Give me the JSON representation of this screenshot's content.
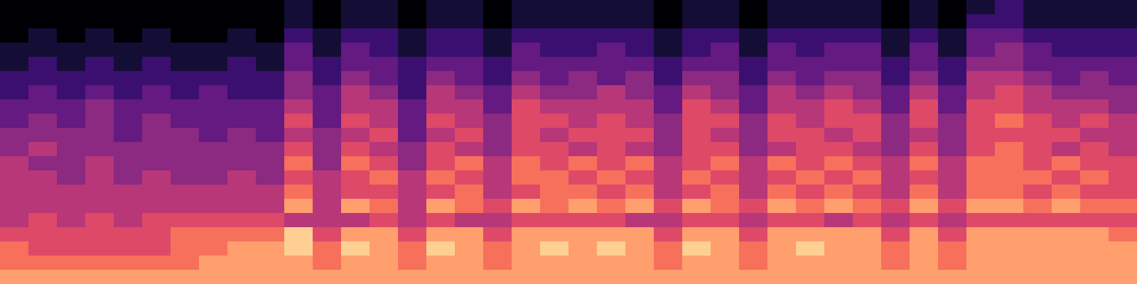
{
  "chart_data": {
    "type": "heatmap",
    "color": "magma",
    "tick_labels": false,
    "zlim": [
      0,
      10
    ],
    "cells": [
      [
        0,
        0,
        0,
        0,
        0,
        0,
        0,
        0,
        0,
        0,
        1,
        0,
        1,
        1,
        0,
        1,
        1,
        0,
        1,
        1,
        1,
        1,
        1,
        0,
        1,
        1,
        0,
        1,
        1,
        1,
        1,
        0,
        1,
        0,
        1,
        2,
        1,
        1,
        1,
        1
      ],
      [
        0,
        0,
        0,
        0,
        0,
        0,
        0,
        0,
        0,
        0,
        1,
        0,
        1,
        1,
        0,
        1,
        1,
        0,
        1,
        1,
        1,
        1,
        1,
        0,
        1,
        1,
        0,
        1,
        1,
        1,
        1,
        0,
        1,
        0,
        2,
        2,
        1,
        1,
        1,
        1
      ],
      [
        0,
        1,
        0,
        1,
        0,
        1,
        0,
        0,
        1,
        0,
        2,
        1,
        2,
        2,
        1,
        2,
        2,
        1,
        2,
        2,
        2,
        2,
        2,
        1,
        2,
        2,
        1,
        2,
        2,
        2,
        2,
        1,
        2,
        1,
        3,
        3,
        2,
        2,
        2,
        2
      ],
      [
        1,
        1,
        1,
        1,
        1,
        1,
        1,
        1,
        1,
        1,
        3,
        1,
        3,
        2,
        1,
        2,
        2,
        1,
        3,
        2,
        2,
        3,
        2,
        1,
        2,
        3,
        1,
        3,
        2,
        3,
        3,
        1,
        3,
        1,
        3,
        4,
        3,
        2,
        2,
        2
      ],
      [
        1,
        2,
        1,
        2,
        1,
        2,
        1,
        1,
        2,
        1,
        3,
        2,
        3,
        3,
        2,
        3,
        3,
        2,
        3,
        3,
        3,
        3,
        3,
        2,
        3,
        3,
        2,
        3,
        3,
        3,
        3,
        2,
        3,
        2,
        4,
        4,
        3,
        3,
        3,
        3
      ],
      [
        2,
        2,
        2,
        2,
        2,
        2,
        2,
        2,
        2,
        2,
        4,
        2,
        4,
        3,
        2,
        4,
        3,
        2,
        4,
        3,
        4,
        3,
        4,
        2,
        4,
        4,
        2,
        4,
        3,
        4,
        4,
        2,
        4,
        2,
        5,
        5,
        4,
        3,
        4,
        3
      ],
      [
        2,
        3,
        2,
        3,
        2,
        3,
        2,
        3,
        2,
        2,
        4,
        3,
        5,
        4,
        2,
        5,
        4,
        3,
        5,
        4,
        4,
        5,
        4,
        3,
        5,
        4,
        3,
        5,
        4,
        5,
        4,
        3,
        5,
        3,
        5,
        6,
        5,
        4,
        4,
        4
      ],
      [
        3,
        3,
        3,
        4,
        3,
        3,
        3,
        3,
        3,
        3,
        5,
        3,
        5,
        5,
        3,
        5,
        5,
        3,
        6,
        5,
        5,
        5,
        5,
        3,
        6,
        5,
        3,
        5,
        5,
        6,
        5,
        3,
        6,
        3,
        6,
        6,
        5,
        5,
        5,
        4
      ],
      [
        3,
        4,
        3,
        4,
        3,
        4,
        3,
        3,
        3,
        3,
        6,
        3,
        6,
        5,
        3,
        6,
        5,
        4,
        6,
        6,
        5,
        6,
        5,
        4,
        6,
        6,
        4,
        6,
        5,
        6,
        6,
        4,
        6,
        4,
        6,
        7,
        6,
        5,
        6,
        5
      ],
      [
        4,
        4,
        4,
        4,
        3,
        4,
        4,
        3,
        4,
        3,
        5,
        4,
        5,
        6,
        3,
        5,
        6,
        4,
        6,
        5,
        6,
        6,
        6,
        4,
        6,
        5,
        4,
        6,
        6,
        5,
        6,
        4,
        5,
        4,
        6,
        6,
        6,
        6,
        5,
        5
      ],
      [
        4,
        5,
        4,
        4,
        4,
        4,
        4,
        4,
        4,
        4,
        6,
        4,
        6,
        5,
        4,
        6,
        5,
        4,
        6,
        6,
        5,
        6,
        5,
        4,
        6,
        6,
        4,
        5,
        6,
        6,
        5,
        4,
        6,
        4,
        6,
        7,
        6,
        5,
        6,
        5
      ],
      [
        5,
        4,
        4,
        5,
        4,
        4,
        4,
        4,
        4,
        4,
        7,
        4,
        7,
        6,
        4,
        6,
        7,
        5,
        7,
        6,
        7,
        6,
        7,
        5,
        6,
        7,
        5,
        7,
        6,
        7,
        6,
        5,
        7,
        5,
        7,
        7,
        6,
        7,
        6,
        6
      ],
      [
        5,
        5,
        4,
        5,
        4,
        5,
        4,
        4,
        5,
        4,
        6,
        5,
        6,
        7,
        5,
        7,
        6,
        5,
        7,
        7,
        6,
        7,
        6,
        5,
        7,
        6,
        5,
        6,
        7,
        6,
        7,
        5,
        6,
        5,
        7,
        7,
        7,
        6,
        7,
        6
      ],
      [
        5,
        5,
        5,
        5,
        5,
        5,
        5,
        5,
        5,
        5,
        7,
        5,
        6,
        6,
        5,
        6,
        7,
        5,
        6,
        7,
        7,
        6,
        7,
        5,
        6,
        7,
        5,
        7,
        6,
        7,
        6,
        5,
        7,
        5,
        7,
        7,
        6,
        7,
        6,
        6
      ],
      [
        5,
        5,
        5,
        5,
        5,
        5,
        5,
        5,
        5,
        5,
        8,
        5,
        8,
        7,
        5,
        8,
        7,
        6,
        8,
        7,
        8,
        7,
        8,
        6,
        8,
        7,
        6,
        8,
        7,
        8,
        7,
        6,
        8,
        6,
        8,
        8,
        7,
        8,
        7,
        7
      ],
      [
        5,
        6,
        5,
        6,
        5,
        6,
        6,
        6,
        6,
        6,
        5,
        5,
        5,
        6,
        5,
        6,
        5,
        5,
        6,
        6,
        6,
        6,
        5,
        5,
        6,
        6,
        5,
        6,
        6,
        5,
        6,
        5,
        6,
        5,
        6,
        6,
        6,
        6,
        6,
        6
      ],
      [
        6,
        6,
        6,
        6,
        6,
        6,
        7,
        7,
        7,
        7,
        9,
        6,
        8,
        8,
        6,
        8,
        8,
        6,
        8,
        8,
        8,
        8,
        8,
        6,
        8,
        8,
        6,
        8,
        8,
        8,
        8,
        6,
        8,
        6,
        8,
        8,
        8,
        8,
        8,
        7
      ],
      [
        7,
        6,
        6,
        6,
        6,
        6,
        7,
        7,
        8,
        8,
        9,
        7,
        9,
        8,
        7,
        9,
        8,
        7,
        8,
        9,
        8,
        9,
        8,
        7,
        9,
        8,
        7,
        8,
        9,
        8,
        8,
        7,
        8,
        7,
        8,
        8,
        8,
        8,
        8,
        8
      ],
      [
        7,
        7,
        7,
        7,
        7,
        7,
        7,
        8,
        8,
        8,
        8,
        7,
        8,
        8,
        7,
        8,
        8,
        7,
        8,
        8,
        8,
        8,
        8,
        7,
        8,
        8,
        7,
        8,
        8,
        8,
        8,
        7,
        8,
        7,
        8,
        8,
        8,
        8,
        8,
        8
      ],
      [
        8,
        8,
        8,
        8,
        8,
        8,
        8,
        8,
        8,
        8,
        8,
        8,
        8,
        8,
        8,
        8,
        8,
        8,
        8,
        8,
        8,
        8,
        8,
        8,
        8,
        8,
        8,
        8,
        8,
        8,
        8,
        8,
        8,
        8,
        8,
        8,
        8,
        8,
        8,
        8
      ]
    ]
  }
}
